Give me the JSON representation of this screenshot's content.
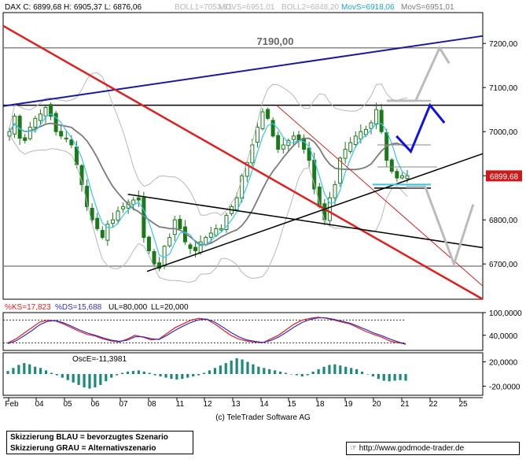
{
  "header": {
    "dax": "DAX C: 6899,68 H: 6905,37 L: 6876,06",
    "boll1": "BOLL1=7053,81",
    "movs1": "MOVS=6951,01",
    "boll2": "BOLL2=6848,20",
    "movs_cyan": "MovS=6918,06",
    "movs2": "MovS=6951,01"
  },
  "annotations": {
    "level_7190": "7190,00",
    "last_price": "6899,68"
  },
  "colors": {
    "resistance_trend": "#1a1a9a",
    "downtrend_red": "#e02020",
    "preferred_scenario": "#1010ee",
    "alt_scenario": "#bbbbbb",
    "candle": "#1a7a1a",
    "bollinger": "#b8b8b8",
    "ma_gray": "#7a7a7a",
    "ma_cyan": "#33c8e8"
  },
  "chart_data": [
    {
      "type": "candlestick",
      "title": "DAX",
      "ylim": [
        6620,
        7270
      ],
      "yticks": [
        "7200,00",
        "7100,00",
        "7000,00",
        "6900,00",
        "6800,00",
        "6700,00"
      ],
      "xticks": [
        "Feb",
        "04",
        "05",
        "06",
        "07",
        "08",
        "11",
        "12",
        "13",
        "14",
        "15",
        "18",
        "19",
        "20",
        "21",
        "22",
        "25"
      ],
      "horizontal_levels": [
        7190,
        7060,
        6695
      ],
      "trendlines": [
        {
          "name": "long-term resistance",
          "from": [
            0,
            7058
          ],
          "to": [
            100,
            7217
          ]
        },
        {
          "name": "red downtrend",
          "from": [
            0,
            7240
          ],
          "to": [
            100,
            6620
          ]
        },
        {
          "name": "red channel",
          "from": [
            57,
            7060
          ],
          "to": [
            100,
            6650
          ]
        },
        {
          "name": "triangle upper",
          "from": [
            26,
            6858
          ],
          "to": [
            100,
            6737
          ]
        },
        {
          "name": "triangle lower",
          "from": [
            30,
            6683
          ],
          "to": [
            100,
            6950
          ]
        }
      ],
      "close": [
        7000,
        7035,
        6985,
        6980,
        7010,
        7030,
        7040,
        7055,
        7035,
        7000,
        6990,
        6985,
        6970,
        6925,
        6880,
        6830,
        6800,
        6780,
        6760,
        6790,
        6800,
        6820,
        6830,
        6840,
        6845,
        6845,
        6760,
        6730,
        6700,
        6690,
        6740,
        6760,
        6800,
        6780,
        6750,
        6735,
        6730,
        6750,
        6760,
        6770,
        6780,
        6780,
        6810,
        6830,
        6850,
        6900,
        6930,
        6970,
        7010,
        7045,
        7030,
        6990,
        6960,
        6970,
        6980,
        6990,
        6980,
        6960,
        6935,
        6870,
        6830,
        6800,
        6850,
        6880,
        6940,
        6960,
        6975,
        6990,
        7000,
        7005,
        7020,
        7050,
        7000,
        6935,
        6910,
        6895,
        6900,
        6900
      ],
      "scenario_blue": [
        [
          82,
          6990
        ],
        [
          85,
          6955
        ],
        [
          89,
          7060
        ],
        [
          92,
          7020
        ]
      ],
      "scenario_gray": [
        [
          80,
          7070
        ],
        [
          86,
          7070
        ],
        [
          91,
          7190
        ],
        [
          93,
          7155
        ]
      ],
      "scenario_gray2": [
        [
          84,
          6875
        ],
        [
          88,
          6875
        ],
        [
          94,
          6700
        ],
        [
          98,
          6835
        ]
      ]
    },
    {
      "type": "line",
      "title": "Stochastic",
      "labels": {
        "ks": "%KS=17,823",
        "ds": "%DS=15,688",
        "ul": "UL=80,000",
        "ll": "LL=20,000"
      },
      "yticks": [
        "100,0000",
        "40,0000"
      ],
      "ylim": [
        0,
        100
      ],
      "reference_lines": [
        80,
        20
      ],
      "series": [
        {
          "name": "%KS",
          "values": [
            20,
            30,
            45,
            60,
            75,
            80,
            78,
            70,
            60,
            50,
            42,
            38,
            30,
            25,
            22,
            30,
            40,
            35,
            28,
            30,
            45,
            60,
            70,
            80,
            85,
            82,
            70,
            55,
            40,
            30,
            25,
            22,
            20,
            30,
            40,
            55,
            70,
            80,
            85,
            88,
            85,
            80,
            75,
            70,
            60,
            50,
            42,
            35,
            25,
            20,
            18
          ]
        },
        {
          "name": "%DS",
          "values": [
            18,
            25,
            38,
            52,
            68,
            77,
            79,
            73,
            64,
            54,
            46,
            40,
            33,
            27,
            24,
            27,
            36,
            36,
            31,
            29,
            40,
            53,
            64,
            74,
            81,
            83,
            75,
            62,
            48,
            36,
            28,
            24,
            21,
            26,
            35,
            48,
            62,
            74,
            82,
            86,
            86,
            82,
            77,
            72,
            64,
            55,
            46,
            39,
            30,
            23,
            16
          ]
        }
      ]
    },
    {
      "type": "bar",
      "title": "Oscillator",
      "labels": {
        "osc": "OscE=-11,3981"
      },
      "yticks": [
        "20,0000",
        "-20,0000"
      ],
      "ylim": [
        -35,
        35
      ],
      "values": [
        5,
        10,
        15,
        18,
        16,
        12,
        10,
        6,
        2,
        -2,
        -6,
        -10,
        -14,
        -18,
        -22,
        -24,
        -22,
        -18,
        -12,
        -6,
        -2,
        2,
        4,
        5,
        6,
        4,
        2,
        -2,
        -4,
        -6,
        -8,
        -9,
        -8,
        -6,
        -4,
        -2,
        2,
        6,
        10,
        14,
        18,
        22,
        26,
        24,
        20,
        16,
        12,
        10,
        8,
        6,
        4,
        2,
        0,
        -2,
        -4,
        -2,
        4,
        8,
        12,
        15,
        16,
        14,
        12,
        10,
        8,
        4,
        0,
        -4,
        -8,
        -11,
        -12,
        -11,
        -10,
        -11
      ]
    }
  ],
  "footer": {
    "copyright": "(c) TeleTrader Software AG",
    "legend_blue": "Skizzierung BLAU = bevorzugtes Szenario",
    "legend_gray": "Skizzierung GRAU = Alternativszenario",
    "website": "http://www.godmode-trader.de"
  }
}
